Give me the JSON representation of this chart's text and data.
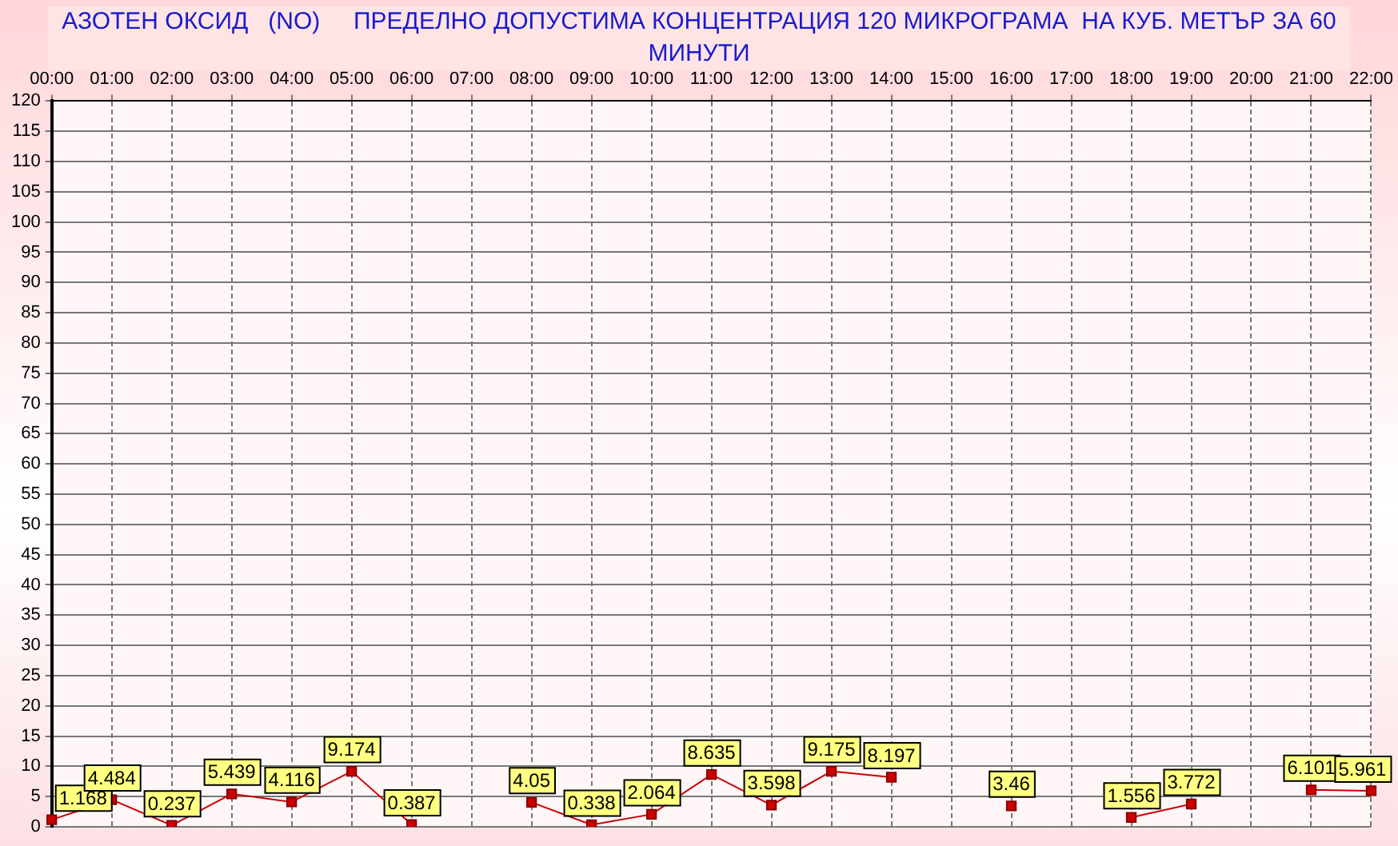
{
  "chart_data": {
    "type": "line",
    "title": "АЗОТЕН ОКСИД   (NO)     ПРЕДЕЛНО ДОПУСТИМА КОНЦЕНТРАЦИЯ 120 МИКРОГРАМА  НА КУБ. МЕТЪР ЗА 60 МИНУТИ",
    "categories": [
      "00:00",
      "01:00",
      "02:00",
      "03:00",
      "04:00",
      "05:00",
      "06:00",
      "07:00",
      "08:00",
      "09:00",
      "10:00",
      "11:00",
      "12:00",
      "13:00",
      "14:00",
      "15:00",
      "16:00",
      "17:00",
      "18:00",
      "19:00",
      "20:00",
      "21:00",
      "22:00"
    ],
    "series": [
      {
        "color": "#cc0000",
        "values": [
          1.168,
          4.484,
          0.237,
          5.439,
          4.116,
          9.174,
          0.387,
          null,
          4.05,
          0.338,
          2.064,
          8.635,
          3.598,
          9.175,
          8.197,
          null,
          3.46,
          null,
          1.556,
          3.772,
          null,
          6.101,
          5.961
        ]
      }
    ],
    "ylim": [
      0,
      120
    ],
    "yticks": [
      0,
      5,
      10,
      15,
      20,
      25,
      30,
      35,
      40,
      45,
      50,
      55,
      60,
      65,
      70,
      75,
      80,
      85,
      90,
      95,
      100,
      105,
      110,
      115,
      120
    ],
    "grid": true,
    "legend": false,
    "marker": "square",
    "line_style": "solid",
    "data_labels": true
  }
}
